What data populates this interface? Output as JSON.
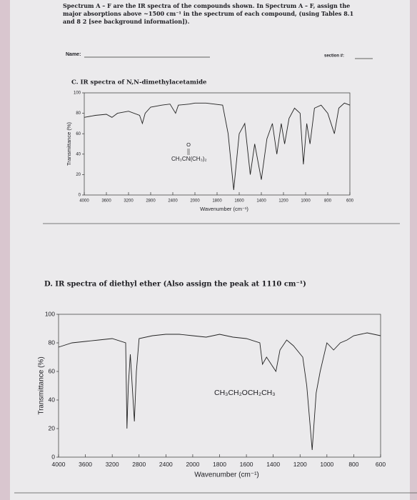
{
  "header": {
    "lines": [
      "Spectrum A – F are the IR spectra of the compounds shown. In Spectrum A – F, assign the",
      "major absorptions above ~1500 cm⁻¹ in the spectrum of each compound, (using Tables 8.1",
      "and 8 2 [see background information])."
    ],
    "name_label": "Name:",
    "section_label": "section #:"
  },
  "chart_data": [
    {
      "type": "line",
      "title": "C. IR spectra of N,N-dimethylacetamide",
      "x_label": "Wavenumber (cm⁻¹)",
      "y_label": "Transmittance (%)",
      "annotation_atom": "O",
      "annotation": "CH₃CN(CH₃)₂",
      "color": "#222222",
      "xlim": [
        4000,
        600
      ],
      "ylim": [
        0,
        100
      ],
      "xticks": [
        4000,
        3600,
        3200,
        2800,
        2400,
        2000,
        1800,
        1600,
        1400,
        1200,
        1000,
        800,
        600
      ],
      "yticks": [
        0,
        20,
        40,
        60,
        80,
        100
      ],
      "x": [
        4000,
        3800,
        3600,
        3500,
        3400,
        3200,
        3000,
        2950,
        2900,
        2800,
        2600,
        2450,
        2350,
        2300,
        2100,
        2000,
        1900,
        1750,
        1700,
        1650,
        1600,
        1550,
        1500,
        1460,
        1400,
        1350,
        1300,
        1260,
        1220,
        1190,
        1150,
        1100,
        1050,
        1020,
        990,
        960,
        920,
        860,
        800,
        740,
        700,
        650,
        600
      ],
      "values": [
        76,
        78,
        79,
        76,
        80,
        82,
        78,
        70,
        80,
        86,
        88,
        89,
        80,
        88,
        89,
        90,
        90,
        88,
        60,
        5,
        60,
        70,
        20,
        50,
        15,
        55,
        70,
        40,
        70,
        50,
        75,
        85,
        80,
        30,
        70,
        50,
        85,
        88,
        80,
        60,
        85,
        90,
        88
      ]
    },
    {
      "type": "line",
      "title": "D. IR spectra of diethyl ether (Also assign the peak at 1110 cm⁻¹)",
      "x_label": "Wavenumber (cm⁻¹)",
      "y_label": "Transmittance (%)",
      "annotation": "CH₃CH₂OCH₂CH₃",
      "color": "#222222",
      "xlim": [
        4000,
        600
      ],
      "ylim": [
        0,
        100
      ],
      "xticks": [
        4000,
        3600,
        3200,
        2800,
        2400,
        2000,
        1800,
        1600,
        1400,
        1200,
        1000,
        800,
        600
      ],
      "yticks": [
        0,
        20,
        40,
        60,
        80,
        100
      ],
      "x": [
        4000,
        3800,
        3600,
        3400,
        3200,
        3000,
        2980,
        2960,
        2930,
        2870,
        2840,
        2800,
        2600,
        2400,
        2200,
        2000,
        1900,
        1800,
        1700,
        1600,
        1500,
        1480,
        1450,
        1380,
        1350,
        1300,
        1250,
        1180,
        1150,
        1110,
        1080,
        1050,
        1000,
        950,
        900,
        850,
        800,
        700,
        600
      ],
      "values": [
        77,
        80,
        81,
        82,
        83,
        80,
        20,
        50,
        72,
        25,
        60,
        83,
        85,
        86,
        86,
        85,
        84,
        86,
        84,
        83,
        80,
        65,
        70,
        60,
        75,
        82,
        78,
        70,
        50,
        5,
        45,
        60,
        80,
        75,
        80,
        82,
        85,
        87,
        85
      ]
    }
  ]
}
